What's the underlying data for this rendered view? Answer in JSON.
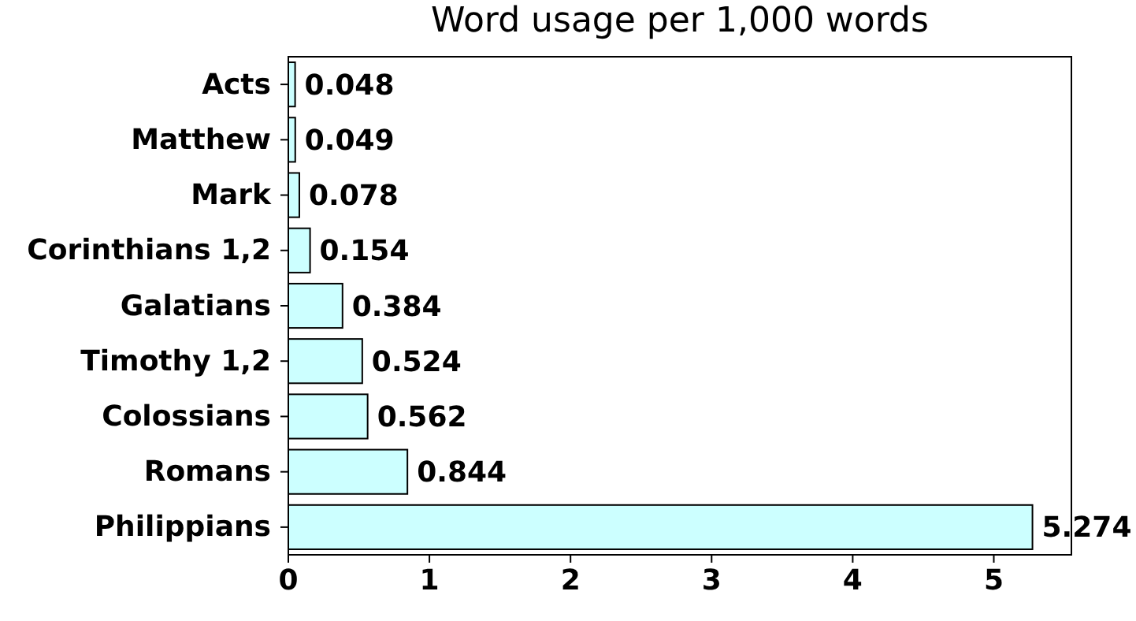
{
  "chart_data": {
    "type": "bar",
    "orientation": "horizontal",
    "title": "Word usage per 1,000 words",
    "categories": [
      "Acts",
      "Matthew",
      "Mark",
      "Corinthians 1,2",
      "Galatians",
      "Timothy 1,2",
      "Colossians",
      "Romans",
      "Philippians"
    ],
    "values": [
      0.048,
      0.049,
      0.078,
      0.154,
      0.384,
      0.524,
      0.562,
      0.844,
      5.274
    ],
    "color": "#ccffff",
    "xlim": [
      0,
      5.55
    ],
    "xticks": [
      0,
      1,
      2,
      3,
      4,
      5
    ],
    "data_labels": true
  }
}
